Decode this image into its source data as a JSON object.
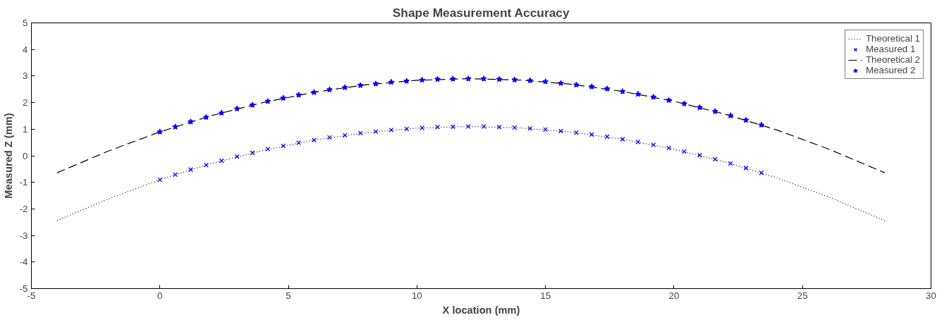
{
  "chart_data": {
    "type": "line",
    "title": "Shape Measurement Accuracy",
    "xlabel": "X location (mm)",
    "ylabel": "Measured Z (mm)",
    "xlim": [
      -5,
      30
    ],
    "ylim": [
      -5,
      5
    ],
    "xticks": [
      -5,
      0,
      5,
      10,
      15,
      20,
      25,
      30
    ],
    "yticks": [
      -5,
      -4,
      -3,
      -2,
      -1,
      0,
      1,
      2,
      3,
      4,
      5
    ],
    "grid": false,
    "legend": "top right",
    "series": [
      {
        "name": "Theoretical 1",
        "color": "#000000",
        "line_style": "dotted",
        "marker": "none",
        "x": [
          -4,
          -2,
          0,
          2,
          4,
          6,
          8,
          10,
          12,
          14,
          16,
          18,
          20,
          22,
          24,
          26,
          28.2
        ],
        "values": [
          -2.44,
          -1.62,
          -0.9,
          -0.29,
          0.2,
          0.59,
          0.87,
          1.04,
          1.1,
          1.05,
          0.89,
          0.62,
          0.25,
          -0.24,
          -0.83,
          -1.54,
          -2.44
        ]
      },
      {
        "name": "Measured 1",
        "type": "scatter",
        "color": "#0000ff",
        "marker": "cross",
        "x": [
          0,
          0.6,
          1.2,
          1.8,
          2.4,
          3.0,
          3.6,
          4.2,
          4.8,
          5.4,
          6.0,
          6.6,
          7.2,
          7.8,
          8.4,
          9.0,
          9.6,
          10.2,
          10.8,
          11.4,
          12.0,
          12.6,
          13.2,
          13.8,
          14.4,
          15.0,
          15.6,
          16.2,
          16.8,
          17.4,
          18.0,
          18.6,
          19.2,
          19.8,
          20.4,
          21.0,
          21.6,
          22.2,
          22.8,
          23.4
        ],
        "values": [
          -0.9,
          -0.71,
          -0.52,
          -0.35,
          -0.19,
          -0.03,
          0.11,
          0.25,
          0.37,
          0.49,
          0.59,
          0.69,
          0.77,
          0.85,
          0.91,
          0.97,
          1.01,
          1.05,
          1.08,
          1.09,
          1.1,
          1.1,
          1.08,
          1.06,
          1.03,
          0.99,
          0.93,
          0.87,
          0.8,
          0.72,
          0.62,
          0.52,
          0.41,
          0.29,
          0.16,
          0.02,
          -0.13,
          -0.29,
          -0.46,
          -0.64
        ]
      },
      {
        "name": "Theoretical 2",
        "color": "#000000",
        "line_style": "dashed",
        "marker": "none",
        "x": [
          -4,
          -2,
          0,
          2,
          4,
          6,
          8,
          10,
          12,
          14,
          16,
          18,
          20,
          22,
          24,
          26,
          28.2
        ],
        "values": [
          -0.64,
          0.18,
          0.9,
          1.51,
          2.0,
          2.39,
          2.67,
          2.84,
          2.9,
          2.85,
          2.69,
          2.42,
          2.05,
          1.56,
          0.97,
          0.26,
          -0.64
        ]
      },
      {
        "name": "Measured 2",
        "type": "scatter",
        "color": "#0000ff",
        "marker": "star",
        "x": [
          0,
          0.6,
          1.2,
          1.8,
          2.4,
          3.0,
          3.6,
          4.2,
          4.8,
          5.4,
          6.0,
          6.6,
          7.2,
          7.8,
          8.4,
          9.0,
          9.6,
          10.2,
          10.8,
          11.4,
          12.0,
          12.6,
          13.2,
          13.8,
          14.4,
          15.0,
          15.6,
          16.2,
          16.8,
          17.4,
          18.0,
          18.6,
          19.2,
          19.8,
          20.4,
          21.0,
          21.6,
          22.2,
          22.8,
          23.4
        ],
        "values": [
          0.9,
          1.09,
          1.28,
          1.45,
          1.61,
          1.77,
          1.91,
          2.05,
          2.17,
          2.29,
          2.39,
          2.49,
          2.57,
          2.65,
          2.71,
          2.77,
          2.81,
          2.85,
          2.88,
          2.89,
          2.9,
          2.9,
          2.88,
          2.86,
          2.83,
          2.79,
          2.73,
          2.67,
          2.6,
          2.52,
          2.42,
          2.32,
          2.21,
          2.09,
          1.96,
          1.82,
          1.67,
          1.51,
          1.34,
          1.16
        ]
      }
    ]
  }
}
